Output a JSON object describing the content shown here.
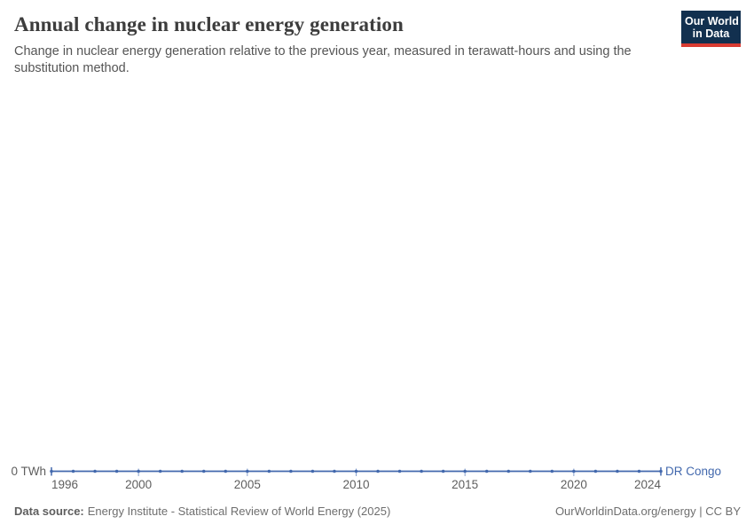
{
  "header": {
    "title": "Annual change in nuclear energy generation",
    "subtitle": "Change in nuclear energy generation relative to the previous year, measured in terawatt-hours and using the substitution method.",
    "logo": {
      "line1": "Our World",
      "line2": "in Data"
    }
  },
  "chart_data": {
    "type": "line",
    "title": "Annual change in nuclear energy generation",
    "unit": "TWh",
    "x": [
      1996,
      1997,
      1998,
      1999,
      2000,
      2001,
      2002,
      2003,
      2004,
      2005,
      2006,
      2007,
      2008,
      2009,
      2010,
      2011,
      2012,
      2013,
      2014,
      2015,
      2016,
      2017,
      2018,
      2019,
      2020,
      2021,
      2022,
      2023,
      2024
    ],
    "series": [
      {
        "name": "DR Congo",
        "color": "#4268ad",
        "values": [
          0,
          0,
          0,
          0,
          0,
          0,
          0,
          0,
          0,
          0,
          0,
          0,
          0,
          0,
          0,
          0,
          0,
          0,
          0,
          0,
          0,
          0,
          0,
          0,
          0,
          0,
          0,
          0,
          0
        ]
      }
    ],
    "x_ticks": [
      1996,
      2000,
      2005,
      2010,
      2015,
      2020,
      2024
    ],
    "y_zero_label": "0 TWh",
    "xlim": [
      1996,
      2024
    ],
    "ylim": [
      0,
      0
    ],
    "grid": false,
    "legend_position": "right-of-line-end"
  },
  "footer": {
    "source_label": "Data source:",
    "source_text": "Energy Institute - Statistical Review of World Energy (2025)",
    "credit": "OurWorldinData.org/energy | CC BY"
  },
  "colors": {
    "accent_line": "#4268ad",
    "tick_mark": "#8aa2cf",
    "title_text": "#3d3d3d",
    "subtitle_text": "#555555",
    "axis_text": "#5e5e5e",
    "footer_text": "#6e6e6e",
    "logo_bg": "#12304f",
    "logo_red": "#d93b32"
  }
}
